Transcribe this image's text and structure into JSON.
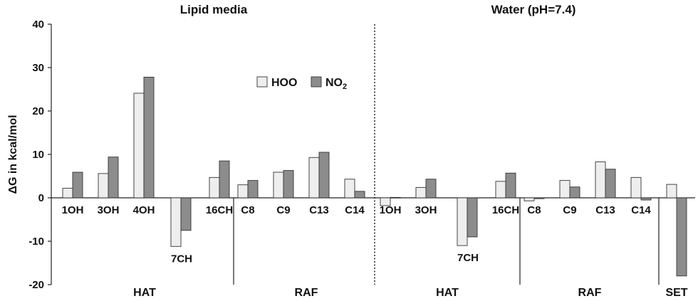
{
  "chart_data": {
    "type": "bar",
    "ylabel": "ΔG in kcal/mol",
    "ylim": [
      -20,
      40
    ],
    "yticks": [
      -20,
      -10,
      0,
      10,
      20,
      30,
      40
    ],
    "legend": {
      "position": "top-right",
      "entries": [
        {
          "label": "HOO",
          "color": "#eeeeee"
        },
        {
          "label": "NO",
          "subscript": "2",
          "color": "#8c8c8c"
        }
      ]
    },
    "panels": [
      {
        "title": "Lipid media",
        "categories": [
          "1OH",
          "3OH",
          "4OH",
          "7CH",
          "16CH",
          "C8",
          "C9",
          "C13",
          "C14"
        ],
        "series": [
          {
            "name": "HOO",
            "values": [
              2.2,
              5.6,
              24.1,
              -11.2,
              4.7,
              3.0,
              5.9,
              9.3,
              4.3
            ]
          },
          {
            "name": "NO2",
            "values": [
              5.9,
              9.4,
              27.8,
              -7.5,
              8.5,
              4.0,
              6.3,
              10.5,
              1.5
            ]
          }
        ],
        "groups": [
          {
            "label": "HAT",
            "categories": [
              "1OH",
              "3OH",
              "4OH",
              "7CH",
              "16CH"
            ]
          },
          {
            "label": "RAF",
            "categories": [
              "C8",
              "C9",
              "C13",
              "C14"
            ]
          }
        ]
      },
      {
        "title": "Water (pH=7.4)",
        "categories": [
          "1OH",
          "3OH",
          "7CH",
          "16CH",
          "C8",
          "C9",
          "C13",
          "C14",
          ""
        ],
        "series": [
          {
            "name": "HOO",
            "values": [
              -1.8,
              2.4,
              -11.0,
              3.8,
              -0.7,
              4.0,
              8.3,
              4.7,
              3.1
            ]
          },
          {
            "name": "NO2",
            "values": [
              0.1,
              4.3,
              -9.0,
              5.7,
              -0.2,
              2.5,
              6.6,
              -0.5,
              -18.0
            ]
          }
        ],
        "groups": [
          {
            "label": "HAT",
            "categories": [
              "1OH",
              "3OH",
              "7CH",
              "16CH"
            ]
          },
          {
            "label": "RAF",
            "categories": [
              "C8",
              "C9",
              "C13",
              "C14"
            ]
          },
          {
            "label": "SET",
            "categories": [
              ""
            ]
          }
        ]
      }
    ]
  }
}
